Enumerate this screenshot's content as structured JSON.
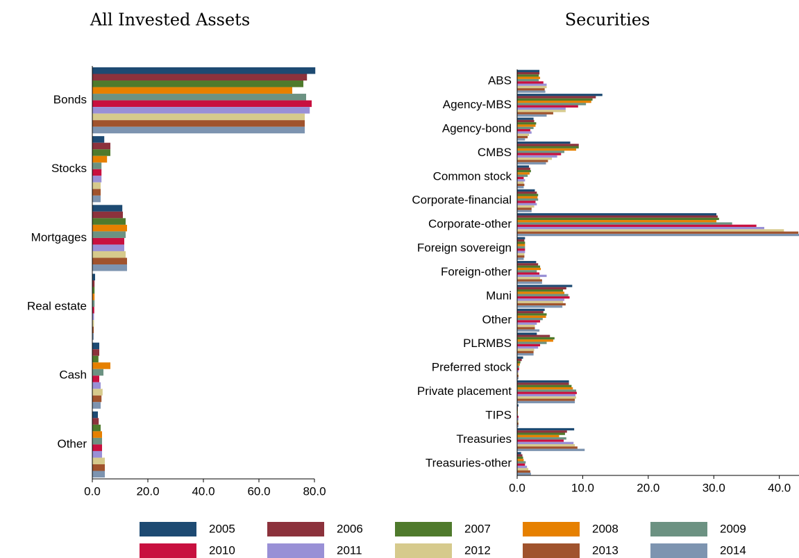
{
  "chart_data": [
    {
      "type": "bar",
      "orientation": "horizontal",
      "title": "All Invested Assets",
      "categories": [
        "Bonds",
        "Stocks",
        "Mortgages",
        "Real estate",
        "Cash",
        "Other"
      ],
      "xlim": [
        0,
        80
      ],
      "xticks": [
        {
          "value": 0,
          "label": "0.0"
        },
        {
          "value": 20,
          "label": "20.0"
        },
        {
          "value": 40,
          "label": "40.0"
        },
        {
          "value": 60,
          "label": "60.0"
        },
        {
          "value": 80,
          "label": "80.0"
        }
      ],
      "series": [
        {
          "name": "2005",
          "color": "#1d4a72",
          "values": [
            80.3,
            4.3,
            10.8,
            1.0,
            2.5,
            2.0
          ]
        },
        {
          "name": "2006",
          "color": "#8c323c",
          "values": [
            77.3,
            6.5,
            11.0,
            0.8,
            2.5,
            2.3
          ]
        },
        {
          "name": "2007",
          "color": "#4f7a2c",
          "values": [
            76.0,
            6.5,
            12.0,
            0.8,
            2.2,
            3.0
          ]
        },
        {
          "name": "2008",
          "color": "#e68000",
          "values": [
            72.0,
            5.3,
            12.5,
            0.8,
            6.5,
            3.5
          ]
        },
        {
          "name": "2009",
          "color": "#6c9282",
          "values": [
            77.0,
            3.3,
            12.0,
            0.8,
            4.0,
            3.5
          ]
        },
        {
          "name": "2010",
          "color": "#c8103f",
          "values": [
            79.0,
            3.3,
            11.5,
            0.7,
            2.5,
            3.5
          ]
        },
        {
          "name": "2011",
          "color": "#9990d6",
          "values": [
            78.3,
            3.3,
            11.5,
            0.6,
            3.0,
            3.5
          ]
        },
        {
          "name": "2012",
          "color": "#d6ca8c",
          "values": [
            76.5,
            3.0,
            12.0,
            0.6,
            3.7,
            4.5
          ]
        },
        {
          "name": "2013",
          "color": "#a0532d",
          "values": [
            76.5,
            3.0,
            12.5,
            0.5,
            3.3,
            4.5
          ]
        },
        {
          "name": "2014",
          "color": "#7d94b0",
          "values": [
            76.5,
            3.0,
            12.5,
            0.5,
            3.0,
            4.5
          ]
        }
      ]
    },
    {
      "type": "bar",
      "orientation": "horizontal",
      "title": "Securities",
      "categories": [
        "ABS",
        "Agency-MBS",
        "Agency-bond",
        "CMBS",
        "Common stock",
        "Corporate-financial",
        "Corporate-other",
        "Foreign sovereign",
        "Foreign-other",
        "Muni",
        "Other",
        "PLRMBS",
        "Preferred stock",
        "Private placement",
        "TIPS",
        "Treasuries",
        "Treasuries-other"
      ],
      "xlim": [
        0,
        43
      ],
      "xticks": [
        {
          "value": 0,
          "label": "0.0"
        },
        {
          "value": 10,
          "label": "10.0"
        },
        {
          "value": 20,
          "label": "20.0"
        },
        {
          "value": 30,
          "label": "30.0"
        },
        {
          "value": 40,
          "label": "40.0"
        }
      ],
      "series": [
        {
          "color": "#1d4a72",
          "values": [
            3.4,
            13.0,
            2.5,
            8.1,
            1.8,
            2.7,
            30.4,
            1.2,
            2.9,
            8.4,
            4.2,
            3.0,
            0.9,
            7.9,
            0.2,
            8.7,
            0.6
          ]
        },
        {
          "color": "#8c323c",
          "values": [
            3.4,
            12.0,
            2.6,
            9.4,
            2.0,
            3.0,
            30.6,
            1.1,
            3.2,
            7.5,
            4.0,
            5.0,
            0.7,
            7.9,
            0.1,
            7.6,
            0.8
          ]
        },
        {
          "color": "#4f7a2c",
          "values": [
            3.3,
            11.5,
            2.9,
            9.4,
            2.1,
            3.2,
            30.8,
            1.2,
            3.5,
            7.0,
            4.5,
            5.7,
            0.5,
            8.3,
            0.1,
            7.3,
            0.9
          ]
        },
        {
          "color": "#e68000",
          "values": [
            3.5,
            11.3,
            2.8,
            9.0,
            1.9,
            3.1,
            30.4,
            1.2,
            3.6,
            7.2,
            4.4,
            5.5,
            0.4,
            8.5,
            0.1,
            6.4,
            1.0
          ]
        },
        {
          "color": "#6c9282",
          "values": [
            3.3,
            10.5,
            2.5,
            7.2,
            1.6,
            3.2,
            32.8,
            1.2,
            3.0,
            7.8,
            3.9,
            4.5,
            0.3,
            9.0,
            0.1,
            7.5,
            1.3
          ]
        },
        {
          "color": "#c8103f",
          "values": [
            4.0,
            9.3,
            2.0,
            6.7,
            1.0,
            2.8,
            36.5,
            1.2,
            3.4,
            8.0,
            3.5,
            3.5,
            0.3,
            9.1,
            0.2,
            7.1,
            1.2
          ]
        },
        {
          "color": "#9990d6",
          "values": [
            4.5,
            7.4,
            2.2,
            6.1,
            1.2,
            3.0,
            37.7,
            1.2,
            4.5,
            7.2,
            3.0,
            3.2,
            0.2,
            8.9,
            0.2,
            8.6,
            1.5
          ]
        },
        {
          "color": "#d6ca8c",
          "values": [
            4.5,
            7.4,
            1.8,
            5.3,
            1.0,
            2.6,
            40.7,
            1.1,
            3.5,
            7.0,
            2.7,
            2.6,
            0.2,
            9.0,
            0.2,
            8.8,
            1.7
          ]
        },
        {
          "color": "#a0532d",
          "values": [
            4.2,
            5.5,
            1.6,
            4.7,
            1.1,
            2.2,
            42.9,
            1.1,
            3.8,
            7.4,
            2.7,
            2.5,
            0.2,
            8.8,
            0.2,
            9.2,
            2.0
          ]
        },
        {
          "color": "#7d94b0",
          "values": [
            4.3,
            4.5,
            1.2,
            4.4,
            1.0,
            2.2,
            43.0,
            1.0,
            3.8,
            6.9,
            3.4,
            2.5,
            0.2,
            8.8,
            0.2,
            10.3,
            2.1
          ]
        }
      ]
    }
  ]
}
